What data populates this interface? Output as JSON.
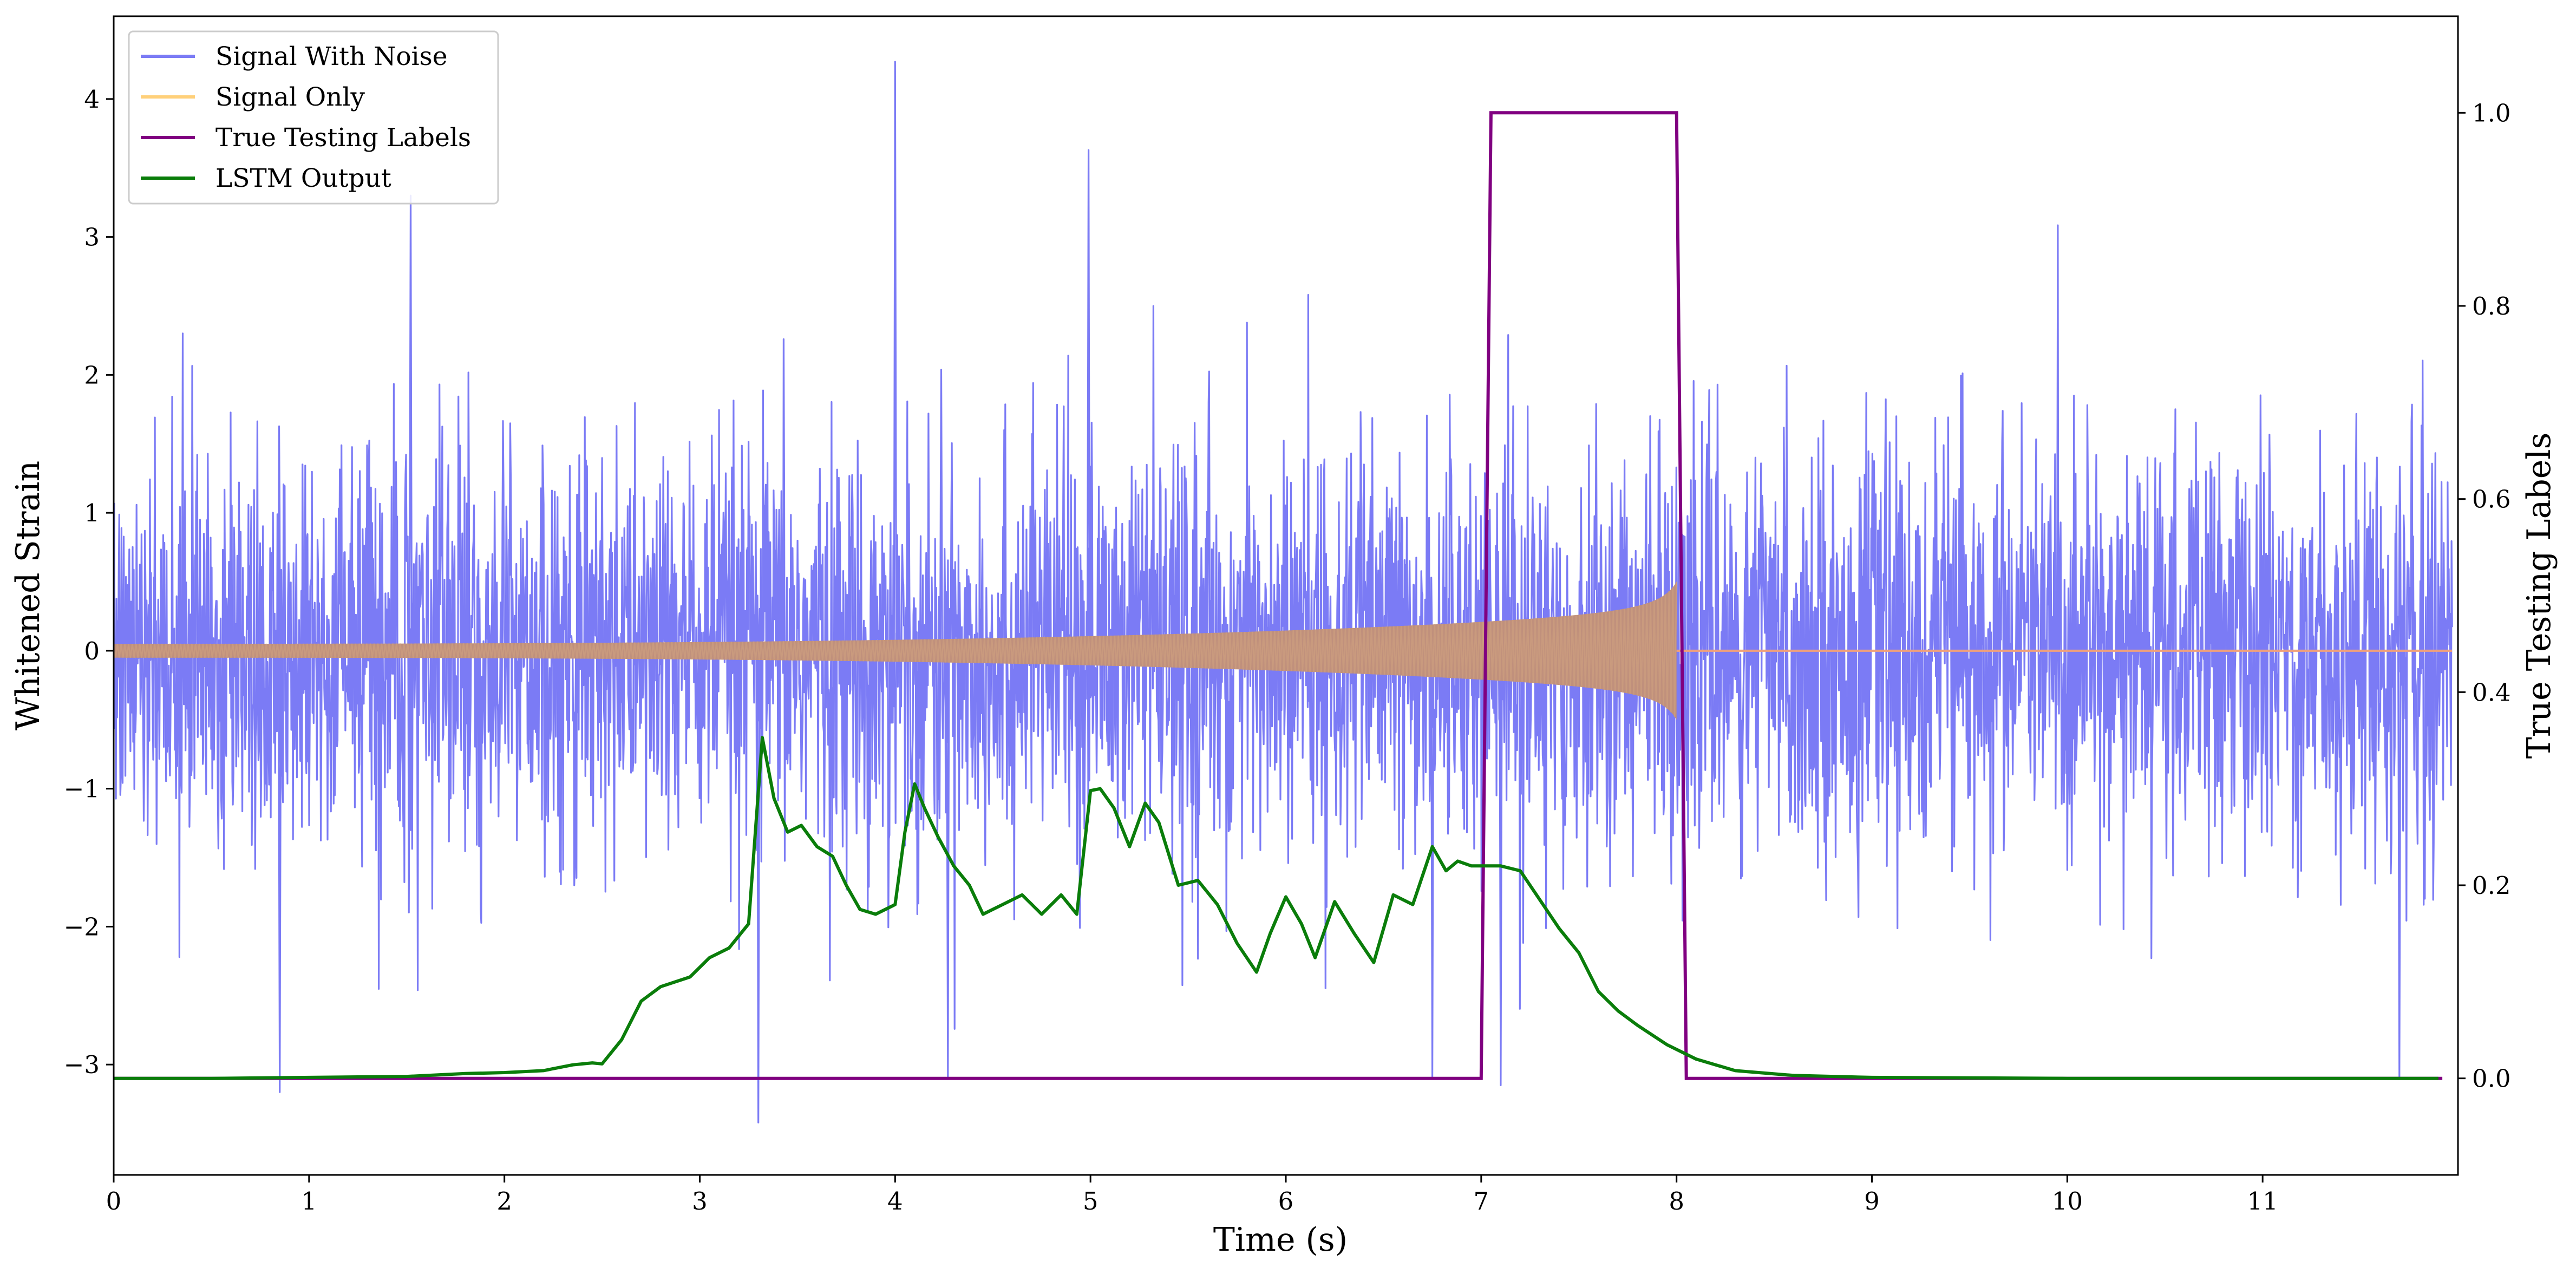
{
  "chart_data": {
    "type": "line",
    "xlabel": "Time (s)",
    "ylabel_left": "Whitened Strain",
    "ylabel_right": "True Testing Labels",
    "xlim": [
      0,
      12
    ],
    "ylim_left": [
      -3.8,
      4.6
    ],
    "ylim_right": [
      -0.1,
      1.1
    ],
    "x_ticks": [
      0,
      1,
      2,
      3,
      4,
      5,
      6,
      7,
      8,
      9,
      10,
      11
    ],
    "x_tick_labels": [
      "0",
      "1",
      "2",
      "3",
      "4",
      "5",
      "6",
      "7",
      "8",
      "9",
      "10",
      "11"
    ],
    "y_left_ticks": [
      -3,
      -2,
      -1,
      0,
      1,
      2,
      3,
      4
    ],
    "y_left_tick_labels": [
      "−3",
      "−2",
      "−1",
      "0",
      "1",
      "2",
      "3",
      "4"
    ],
    "y_right_ticks": [
      0.0,
      0.2,
      0.4,
      0.6,
      0.8,
      1.0
    ],
    "y_right_tick_labels": [
      "0.0",
      "0.2",
      "0.4",
      "0.6",
      "0.8",
      "1.0"
    ],
    "grid": false,
    "legend_position": "top-left",
    "legend": [
      {
        "label": "Signal With Noise",
        "color": "#7b7bf5"
      },
      {
        "label": "Signal Only",
        "color": "#ffd07a"
      },
      {
        "label": "True Testing Labels",
        "color": "#800080"
      },
      {
        "label": "LSTM Output",
        "color": "#0a7d0a"
      }
    ],
    "series": [
      {
        "name": "Signal With Noise",
        "axis": "left",
        "color": "#7b7bf5",
        "description_of_values": "Gaussian-like noise, mostly within -2..2, spikes up to ~4.3 and down to ~-3.4",
        "noise_std": 0.72,
        "spikes": [
          {
            "x": 0.85,
            "y": -3.2
          },
          {
            "x": 1.52,
            "y": 3.3
          },
          {
            "x": 3.3,
            "y": -3.42
          },
          {
            "x": 4.0,
            "y": 4.27
          },
          {
            "x": 4.27,
            "y": -3.1
          },
          {
            "x": 4.99,
            "y": 3.63
          },
          {
            "x": 6.75,
            "y": -3.1
          },
          {
            "x": 7.1,
            "y": -3.15
          },
          {
            "x": 11.7,
            "y": -3.1
          }
        ]
      },
      {
        "name": "Signal Only",
        "axis": "left",
        "color": "#ffd07a",
        "description_of_values": "chirp: amplitude grows from ~0.05 at t=0 to ~0.5 at t=8.0, then 0",
        "start_amplitude": 0.05,
        "end_amplitude": 0.5,
        "merger_time": 8.0
      },
      {
        "name": "True Testing Labels",
        "axis": "right",
        "color": "#800080",
        "x": [
          0,
          7.0,
          7.05,
          8.0,
          8.05,
          11.92
        ],
        "y": [
          0,
          0,
          1,
          1,
          0,
          0
        ]
      },
      {
        "name": "LSTM Output",
        "axis": "right",
        "color": "#0a7d0a",
        "x": [
          0,
          0.5,
          1.0,
          1.5,
          1.8,
          2.0,
          2.2,
          2.35,
          2.45,
          2.5,
          2.6,
          2.7,
          2.8,
          2.95,
          3.05,
          3.15,
          3.25,
          3.32,
          3.38,
          3.45,
          3.52,
          3.6,
          3.68,
          3.75,
          3.82,
          3.9,
          4.0,
          4.05,
          4.1,
          4.15,
          4.22,
          4.3,
          4.38,
          4.45,
          4.55,
          4.65,
          4.75,
          4.85,
          4.93,
          5.0,
          5.05,
          5.12,
          5.2,
          5.28,
          5.35,
          5.45,
          5.55,
          5.65,
          5.75,
          5.85,
          5.92,
          6.0,
          6.08,
          6.15,
          6.25,
          6.35,
          6.45,
          6.55,
          6.65,
          6.75,
          6.82,
          6.88,
          6.95,
          7.0,
          7.1,
          7.2,
          7.3,
          7.4,
          7.5,
          7.6,
          7.7,
          7.8,
          7.95,
          8.1,
          8.3,
          8.6,
          9.0,
          10.0,
          11.0,
          11.9
        ],
        "y": [
          0.0,
          0.0,
          0.001,
          0.002,
          0.005,
          0.006,
          0.008,
          0.014,
          0.016,
          0.015,
          0.04,
          0.08,
          0.095,
          0.105,
          0.125,
          0.135,
          0.16,
          0.353,
          0.29,
          0.255,
          0.262,
          0.24,
          0.23,
          0.2,
          0.175,
          0.17,
          0.18,
          0.255,
          0.305,
          0.28,
          0.25,
          0.22,
          0.2,
          0.17,
          0.18,
          0.19,
          0.17,
          0.19,
          0.17,
          0.298,
          0.3,
          0.28,
          0.24,
          0.285,
          0.265,
          0.2,
          0.205,
          0.18,
          0.14,
          0.11,
          0.15,
          0.188,
          0.16,
          0.125,
          0.183,
          0.15,
          0.12,
          0.19,
          0.18,
          0.24,
          0.215,
          0.225,
          0.22,
          0.22,
          0.22,
          0.215,
          0.185,
          0.155,
          0.13,
          0.09,
          0.07,
          0.055,
          0.035,
          0.02,
          0.008,
          0.003,
          0.001,
          0.0,
          0.0,
          0.0
        ]
      }
    ]
  }
}
